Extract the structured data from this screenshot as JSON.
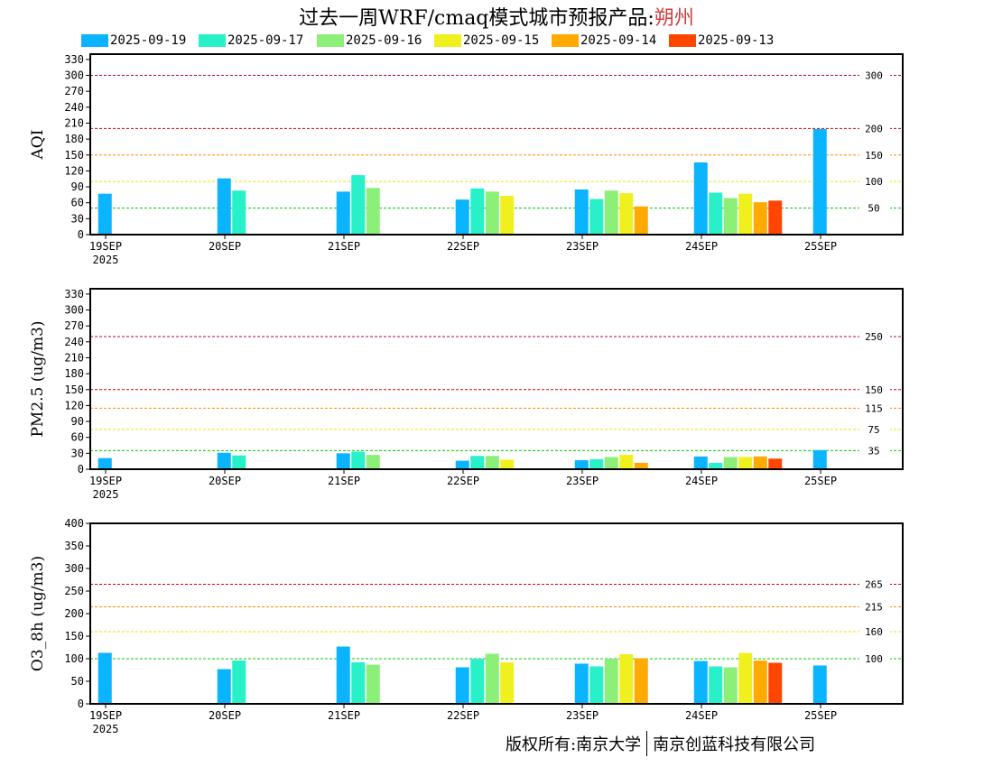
{
  "header": {
    "title_prefix": "过去一周WRF/cmaq模式城市预报产品:",
    "city": "朔州"
  },
  "footer": {
    "owner": "版权所有:南京大学",
    "company": "南京创蓝科技有限公司"
  },
  "colors": {
    "2025-09-19": "#0ab4ff",
    "2025-09-17": "#28f0c8",
    "2025-09-16": "#8cf078",
    "2025-09-15": "#f0f01e",
    "2025-09-14": "#ffaa00",
    "2025-09-13": "#ff4600",
    "title_city": "#d23c3c"
  },
  "chart_data": [
    {
      "type": "bar",
      "ylabel": "AQI",
      "ylim": [
        0,
        340
      ],
      "yticks": [
        0,
        30,
        60,
        90,
        120,
        150,
        180,
        210,
        240,
        270,
        300,
        330
      ],
      "xticks": [
        "19SEP",
        "20SEP",
        "21SEP",
        "22SEP",
        "23SEP",
        "24SEP",
        "25SEP"
      ],
      "year_label": "2025",
      "legend": "top",
      "series": [
        {
          "name": "2025-09-19",
          "values": [
            77,
            106,
            81,
            66,
            85,
            136,
            199
          ]
        },
        {
          "name": "2025-09-17",
          "values": [
            83,
            112,
            87,
            67,
            79
          ]
        },
        {
          "name": "2025-09-16",
          "values": [
            88,
            81,
            83,
            69
          ]
        },
        {
          "name": "2025-09-15",
          "values": [
            73,
            78,
            77
          ]
        },
        {
          "name": "2025-09-14",
          "values": [
            53,
            61
          ]
        },
        {
          "name": "2025-09-13",
          "values": [
            64
          ]
        }
      ],
      "thresholds": [
        {
          "value": 300,
          "label": "300",
          "color": "#b4005a"
        },
        {
          "value": 200,
          "label": "200",
          "color": "#dc0000"
        },
        {
          "value": 150,
          "label": "150",
          "color": "#ff8c00"
        },
        {
          "value": 100,
          "label": "100",
          "color": "#f0e000"
        },
        {
          "value": 50,
          "label": "50",
          "color": "#00c800"
        }
      ]
    },
    {
      "type": "bar",
      "ylabel": "PM2.5 (ug/m3)",
      "ylim": [
        0,
        340
      ],
      "yticks": [
        0,
        30,
        60,
        90,
        120,
        150,
        180,
        210,
        240,
        270,
        300,
        330
      ],
      "xticks": [
        "19SEP",
        "20SEP",
        "21SEP",
        "22SEP",
        "23SEP",
        "24SEP",
        "25SEP"
      ],
      "year_label": "2025",
      "series": [
        {
          "name": "2025-09-19",
          "values": [
            21,
            31,
            30,
            16,
            17,
            24,
            36
          ]
        },
        {
          "name": "2025-09-17",
          "values": [
            26,
            33,
            25,
            19,
            12
          ]
        },
        {
          "name": "2025-09-16",
          "values": [
            27,
            25,
            23,
            23
          ]
        },
        {
          "name": "2025-09-15",
          "values": [
            18,
            27,
            23
          ]
        },
        {
          "name": "2025-09-14",
          "values": [
            12,
            24
          ]
        },
        {
          "name": "2025-09-13",
          "values": [
            20
          ]
        }
      ],
      "thresholds": [
        {
          "value": 250,
          "label": "250",
          "color": "#b4005a"
        },
        {
          "value": 150,
          "label": "150",
          "color": "#dc0000"
        },
        {
          "value": 115,
          "label": "115",
          "color": "#ff8c00"
        },
        {
          "value": 75,
          "label": "75",
          "color": "#f0e000"
        },
        {
          "value": 35,
          "label": "35",
          "color": "#00c800"
        }
      ]
    },
    {
      "type": "bar",
      "ylabel": "O3_8h (ug/m3)",
      "ylim": [
        0,
        400
      ],
      "yticks": [
        0,
        50,
        100,
        150,
        200,
        250,
        300,
        350,
        400
      ],
      "xticks": [
        "19SEP",
        "20SEP",
        "21SEP",
        "22SEP",
        "23SEP",
        "24SEP",
        "25SEP"
      ],
      "year_label": "2025",
      "series": [
        {
          "name": "2025-09-19",
          "values": [
            113,
            77,
            127,
            81,
            89,
            95,
            85
          ]
        },
        {
          "name": "2025-09-17",
          "values": [
            96,
            92,
            100,
            83,
            83
          ]
        },
        {
          "name": "2025-09-16",
          "values": [
            87,
            111,
            100,
            81
          ]
        },
        {
          "name": "2025-09-15",
          "values": [
            92,
            110,
            113
          ]
        },
        {
          "name": "2025-09-14",
          "values": [
            101,
            96
          ]
        },
        {
          "name": "2025-09-13",
          "values": [
            91
          ]
        }
      ],
      "thresholds": [
        {
          "value": 265,
          "label": "265",
          "color": "#dc0000"
        },
        {
          "value": 215,
          "label": "215",
          "color": "#ff8c00"
        },
        {
          "value": 160,
          "label": "160",
          "color": "#f0e000"
        },
        {
          "value": 100,
          "label": "100",
          "color": "#00c800"
        }
      ]
    }
  ]
}
